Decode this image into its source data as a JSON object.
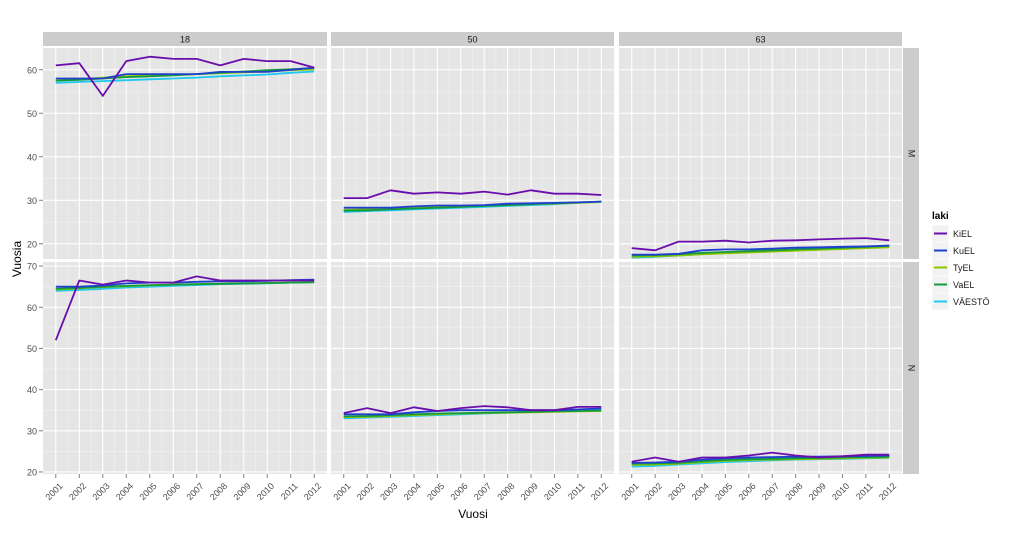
{
  "chart_data": {
    "type": "line",
    "xlabel": "Vuosi",
    "ylabel": "Vuosia",
    "x": [
      "2001",
      "2002",
      "2003",
      "2004",
      "2005",
      "2006",
      "2007",
      "2008",
      "2009",
      "2010",
      "2011",
      "2012"
    ],
    "columns": [
      "18",
      "50",
      "63"
    ],
    "rows": [
      "M",
      "N"
    ],
    "y_ticks": {
      "M": [
        "20",
        "30",
        "40",
        "50",
        "60"
      ],
      "N": [
        "20",
        "30",
        "40",
        "50",
        "60",
        "70"
      ]
    },
    "ylim": {
      "M": [
        16.5,
        65
      ],
      "N": [
        19.5,
        71
      ]
    },
    "legend": {
      "title": "laki",
      "position": "right",
      "entries": [
        "KiEL",
        "KuEL",
        "TyEL",
        "VaEL",
        "VÄESTÖ"
      ]
    },
    "colors": {
      "KiEL": "#6a0dad",
      "KuEL": "#1f3fcf",
      "TyEL": "#8cc400",
      "VaEL": "#149a3c",
      "VÄESTÖ": "#1ec8f0",
      "panel_bg": "#e5e5e5",
      "grid_major": "#ffffff",
      "grid_minor": "#f2f2f2",
      "strip_bg": "#cccccc"
    },
    "panels": [
      {
        "column": "18",
        "row": "M",
        "series": [
          {
            "name": "KiEL",
            "values": [
              61.0,
              61.5,
              54.0,
              62.0,
              63.0,
              62.5,
              62.5,
              61.0,
              62.5,
              62.0,
              62.0,
              60.5
            ]
          },
          {
            "name": "KuEL",
            "values": [
              58.0,
              58.0,
              58.0,
              59.0,
              59.0,
              59.0,
              59.0,
              59.5,
              59.5,
              59.5,
              60.0,
              60.5
            ]
          },
          {
            "name": "TyEL",
            "values": [
              57.5,
              57.8,
              58.2,
              58.5,
              58.7,
              58.8,
              59.0,
              59.2,
              59.4,
              59.6,
              59.9,
              60.1
            ]
          },
          {
            "name": "VaEL",
            "values": [
              57.5,
              57.7,
              58.0,
              58.3,
              58.5,
              58.7,
              59.0,
              59.3,
              59.6,
              59.9,
              60.1,
              60.4
            ]
          },
          {
            "name": "VÄESTÖ",
            "values": [
              57.0,
              57.2,
              57.4,
              57.6,
              57.8,
              58.0,
              58.2,
              58.5,
              58.7,
              58.9,
              59.3,
              59.6
            ]
          }
        ]
      },
      {
        "column": "50",
        "row": "M",
        "series": [
          {
            "name": "KiEL",
            "values": [
              30.5,
              30.5,
              32.3,
              31.5,
              31.8,
              31.5,
              32.0,
              31.3,
              32.3,
              31.5,
              31.5,
              31.2
            ]
          },
          {
            "name": "KuEL",
            "values": [
              28.3,
              28.3,
              28.3,
              28.6,
              28.8,
              28.8,
              28.9,
              29.2,
              29.3,
              29.4,
              29.5,
              29.7
            ]
          },
          {
            "name": "TyEL",
            "values": [
              27.8,
              27.9,
              28.0,
              28.2,
              28.4,
              28.5,
              28.7,
              28.9,
              29.1,
              29.2,
              29.4,
              29.6
            ]
          },
          {
            "name": "VaEL",
            "values": [
              27.6,
              27.7,
              27.9,
              28.1,
              28.3,
              28.5,
              28.7,
              28.9,
              29.1,
              29.3,
              29.5,
              29.7
            ]
          },
          {
            "name": "VÄESTÖ",
            "values": [
              27.3,
              27.5,
              27.7,
              27.9,
              28.1,
              28.3,
              28.5,
              28.7,
              28.9,
              29.1,
              29.4,
              29.7
            ]
          }
        ]
      },
      {
        "column": "63",
        "row": "M",
        "series": [
          {
            "name": "KiEL",
            "values": [
              19.0,
              18.5,
              20.5,
              20.5,
              20.7,
              20.3,
              20.7,
              20.8,
              21.0,
              21.2,
              21.3,
              20.8
            ]
          },
          {
            "name": "KuEL",
            "values": [
              17.5,
              17.5,
              17.7,
              18.5,
              18.7,
              18.7,
              18.9,
              19.1,
              19.2,
              19.3,
              19.4,
              19.6
            ]
          },
          {
            "name": "TyEL",
            "values": [
              17.0,
              17.1,
              17.3,
              17.6,
              17.8,
              18.0,
              18.2,
              18.4,
              18.6,
              18.8,
              19.0,
              19.2
            ]
          },
          {
            "name": "VaEL",
            "values": [
              17.3,
              17.4,
              17.6,
              17.9,
              18.1,
              18.3,
              18.5,
              18.7,
              18.9,
              19.1,
              19.3,
              19.5
            ]
          },
          {
            "name": "VÄESTÖ",
            "values": [
              16.8,
              17.0,
              17.3,
              17.6,
              17.9,
              18.1,
              18.3,
              18.5,
              18.7,
              18.9,
              19.1,
              19.3
            ]
          }
        ]
      },
      {
        "column": "18",
        "row": "N",
        "series": [
          {
            "name": "KiEL",
            "values": [
              52.0,
              66.5,
              65.5,
              66.5,
              66.0,
              66.0,
              67.5,
              66.5,
              66.5,
              66.5,
              66.5,
              66.5
            ]
          },
          {
            "name": "KuEL",
            "values": [
              65.0,
              65.0,
              65.3,
              65.8,
              66.0,
              66.0,
              66.2,
              66.3,
              66.3,
              66.4,
              66.6,
              66.7
            ]
          },
          {
            "name": "TyEL",
            "values": [
              64.3,
              64.6,
              64.9,
              65.1,
              65.3,
              65.5,
              65.6,
              65.7,
              65.8,
              65.9,
              66.0,
              66.1
            ]
          },
          {
            "name": "VaEL",
            "values": [
              64.5,
              64.7,
              65.0,
              65.2,
              65.4,
              65.5,
              65.6,
              65.7,
              65.8,
              65.9,
              66.0,
              66.1
            ]
          },
          {
            "name": "VÄESTÖ",
            "values": [
              64.0,
              64.2,
              64.5,
              64.8,
              65.0,
              65.2,
              65.4,
              65.6,
              65.7,
              65.8,
              66.0,
              66.1
            ]
          }
        ]
      },
      {
        "column": "50",
        "row": "N",
        "series": [
          {
            "name": "KiEL",
            "values": [
              34.3,
              35.5,
              34.3,
              35.7,
              34.8,
              35.5,
              36.0,
              35.7,
              35.0,
              35.0,
              35.8,
              35.8
            ]
          },
          {
            "name": "KuEL",
            "values": [
              34.0,
              34.0,
              34.0,
              34.5,
              34.8,
              35.0,
              35.0,
              35.0,
              35.0,
              35.0,
              35.2,
              35.4
            ]
          },
          {
            "name": "TyEL",
            "values": [
              33.3,
              33.4,
              33.6,
              33.8,
              34.0,
              34.2,
              34.3,
              34.4,
              34.5,
              34.6,
              34.7,
              34.8
            ]
          },
          {
            "name": "VaEL",
            "values": [
              33.5,
              33.6,
              33.8,
              34.0,
              34.2,
              34.3,
              34.4,
              34.5,
              34.6,
              34.7,
              34.8,
              34.9
            ]
          },
          {
            "name": "VÄESTÖ",
            "values": [
              33.0,
              33.2,
              33.4,
              33.6,
              33.8,
              34.0,
              34.2,
              34.4,
              34.6,
              34.8,
              35.0,
              35.2
            ]
          }
        ]
      },
      {
        "column": "63",
        "row": "N",
        "series": [
          {
            "name": "KiEL",
            "values": [
              22.5,
              23.5,
              22.5,
              23.5,
              23.5,
              24.0,
              24.7,
              24.0,
              23.5,
              23.8,
              24.2,
              24.2
            ]
          },
          {
            "name": "KuEL",
            "values": [
              22.2,
              22.3,
              22.5,
              23.0,
              23.3,
              23.5,
              23.6,
              23.7,
              23.7,
              23.8,
              23.9,
              24.0
            ]
          },
          {
            "name": "TyEL",
            "values": [
              21.7,
              21.8,
              22.0,
              22.4,
              22.7,
              22.9,
              23.0,
              23.1,
              23.2,
              23.3,
              23.4,
              23.5
            ]
          },
          {
            "name": "VaEL",
            "values": [
              22.0,
              22.1,
              22.2,
              22.6,
              22.9,
              23.1,
              23.2,
              23.3,
              23.4,
              23.5,
              23.6,
              23.7
            ]
          },
          {
            "name": "VÄESTÖ",
            "values": [
              21.3,
              21.5,
              21.8,
              22.1,
              22.4,
              22.6,
              22.8,
              23.0,
              23.1,
              23.2,
              23.3,
              23.4
            ]
          }
        ]
      }
    ]
  }
}
